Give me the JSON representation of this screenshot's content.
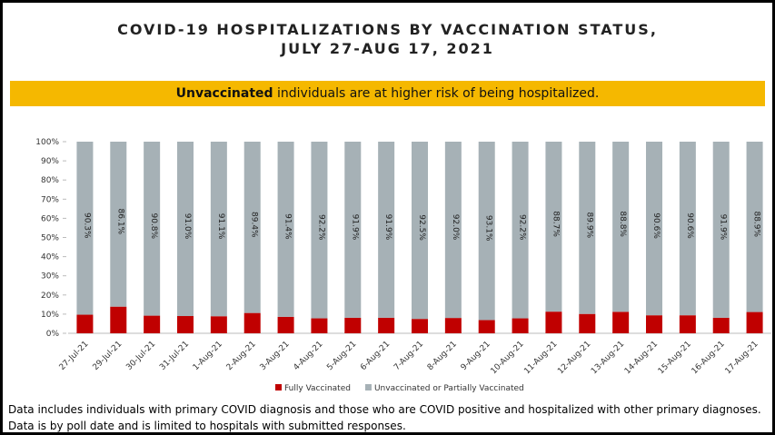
{
  "chart_data": {
    "type": "bar",
    "stacked": true,
    "title_line1": "COVID-19 HOSPITALIZATIONS BY VACCINATION STATUS,",
    "title_line2": "JULY 27-AUG 17, 2021",
    "banner_bold": "Unvaccinated",
    "banner_rest": "individuals are at higher risk of being hospitalized.",
    "categories": [
      "27-Jul-21",
      "29-Jul-21",
      "30-Jul-21",
      "31-Jul-21",
      "1-Aug-21",
      "2-Aug-21",
      "3-Aug-21",
      "4-Aug-21",
      "5-Aug-21",
      "6-Aug-21",
      "7-Aug-21",
      "8-Aug-21",
      "9-Aug-21",
      "10-Aug-21",
      "11-Aug-21",
      "12-Aug-21",
      "13-Aug-21",
      "14-Aug-21",
      "15-Aug-21",
      "16-Aug-21",
      "17-Aug-21"
    ],
    "series": [
      {
        "name": "Fully Vaccinated",
        "color": "#c00000",
        "values": [
          9.7,
          13.9,
          9.2,
          9.0,
          8.9,
          10.6,
          8.6,
          7.8,
          8.1,
          8.1,
          7.5,
          8.0,
          6.9,
          7.8,
          11.3,
          10.1,
          11.2,
          9.4,
          9.4,
          8.1,
          11.1
        ]
      },
      {
        "name": "Unvaccinated or Partially Vaccinated",
        "color": "#a6b1b6",
        "values": [
          90.3,
          86.1,
          90.8,
          91.0,
          91.1,
          89.4,
          91.4,
          92.2,
          91.9,
          91.9,
          92.5,
          92.0,
          93.1,
          92.2,
          88.7,
          89.9,
          88.8,
          90.6,
          90.6,
          91.9,
          88.9
        ],
        "value_labels": [
          "90.3%",
          "86.1%",
          "90.8%",
          "91.0%",
          "91.1%",
          "89.4%",
          "91.4%",
          "92.2%",
          "91.9%",
          "91.9%",
          "92.5%",
          "92.0%",
          "93.1%",
          "92.2%",
          "88.7%",
          "89.9%",
          "88.8%",
          "90.6%",
          "90.6%",
          "91.9%",
          "88.9%"
        ]
      }
    ],
    "ylim": [
      0,
      100
    ],
    "yticks": [
      {
        "value": 0,
        "label": "0%"
      },
      {
        "value": 10,
        "label": "10%"
      },
      {
        "value": 20,
        "label": "20%"
      },
      {
        "value": 30,
        "label": "30%"
      },
      {
        "value": 40,
        "label": "40%"
      },
      {
        "value": 50,
        "label": "50%"
      },
      {
        "value": 60,
        "label": "60%"
      },
      {
        "value": 70,
        "label": "70%"
      },
      {
        "value": 80,
        "label": "80%"
      },
      {
        "value": 90,
        "label": "90%"
      },
      {
        "value": 100,
        "label": "100%"
      }
    ],
    "legend": "bottom",
    "footnote_line1": "Data includes individuals with primary COVID diagnosis and those who are COVID positive and hospitalized with other primary diagnoses.",
    "footnote_line2": "Data is by poll date and is limited to hospitals with submitted responses."
  }
}
